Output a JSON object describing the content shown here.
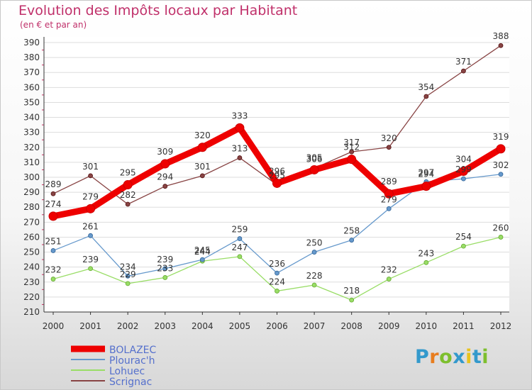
{
  "title": "Evolution des Impôts locaux par Habitant",
  "subtitle": "(en € et par an)",
  "logo": {
    "text": "Proxiti",
    "colors": [
      "#3399cc",
      "#e87d1e",
      "#7dbf2e",
      "#3399cc",
      "#e8c31e",
      "#3399cc",
      "#7dbf2e"
    ]
  },
  "chart_data": {
    "type": "line",
    "title": "Evolution des Impôts locaux par Habitant",
    "ylabel": "(en € et par an)",
    "x": [
      "2000",
      "2001",
      "2002",
      "2003",
      "2004",
      "2005",
      "2006",
      "2007",
      "2008",
      "2009",
      "2010",
      "2011",
      "2012"
    ],
    "ylim": [
      210,
      390
    ],
    "yticks": [
      210,
      220,
      230,
      240,
      250,
      260,
      270,
      280,
      290,
      300,
      310,
      320,
      330,
      340,
      350,
      360,
      370,
      380,
      390
    ],
    "series": [
      {
        "name": "BOLAZEC",
        "color": "#ee0000",
        "values": [
          274,
          279,
          295,
          309,
          320,
          333,
          296,
          305,
          312,
          289,
          294,
          304,
          319
        ]
      },
      {
        "name": "Plourac'h",
        "color": "#6699cc",
        "values": [
          251,
          261,
          234,
          239,
          245,
          259,
          236,
          250,
          258,
          279,
          297,
          299,
          302
        ]
      },
      {
        "name": "Lohuec",
        "color": "#99dd66",
        "values": [
          232,
          239,
          229,
          233,
          244,
          247,
          224,
          228,
          218,
          232,
          243,
          254,
          260
        ]
      },
      {
        "name": "Scrignac",
        "color": "#884444",
        "values": [
          289,
          301,
          282,
          294,
          301,
          313,
          295,
          306,
          317,
          320,
          354,
          371,
          388
        ]
      }
    ]
  }
}
